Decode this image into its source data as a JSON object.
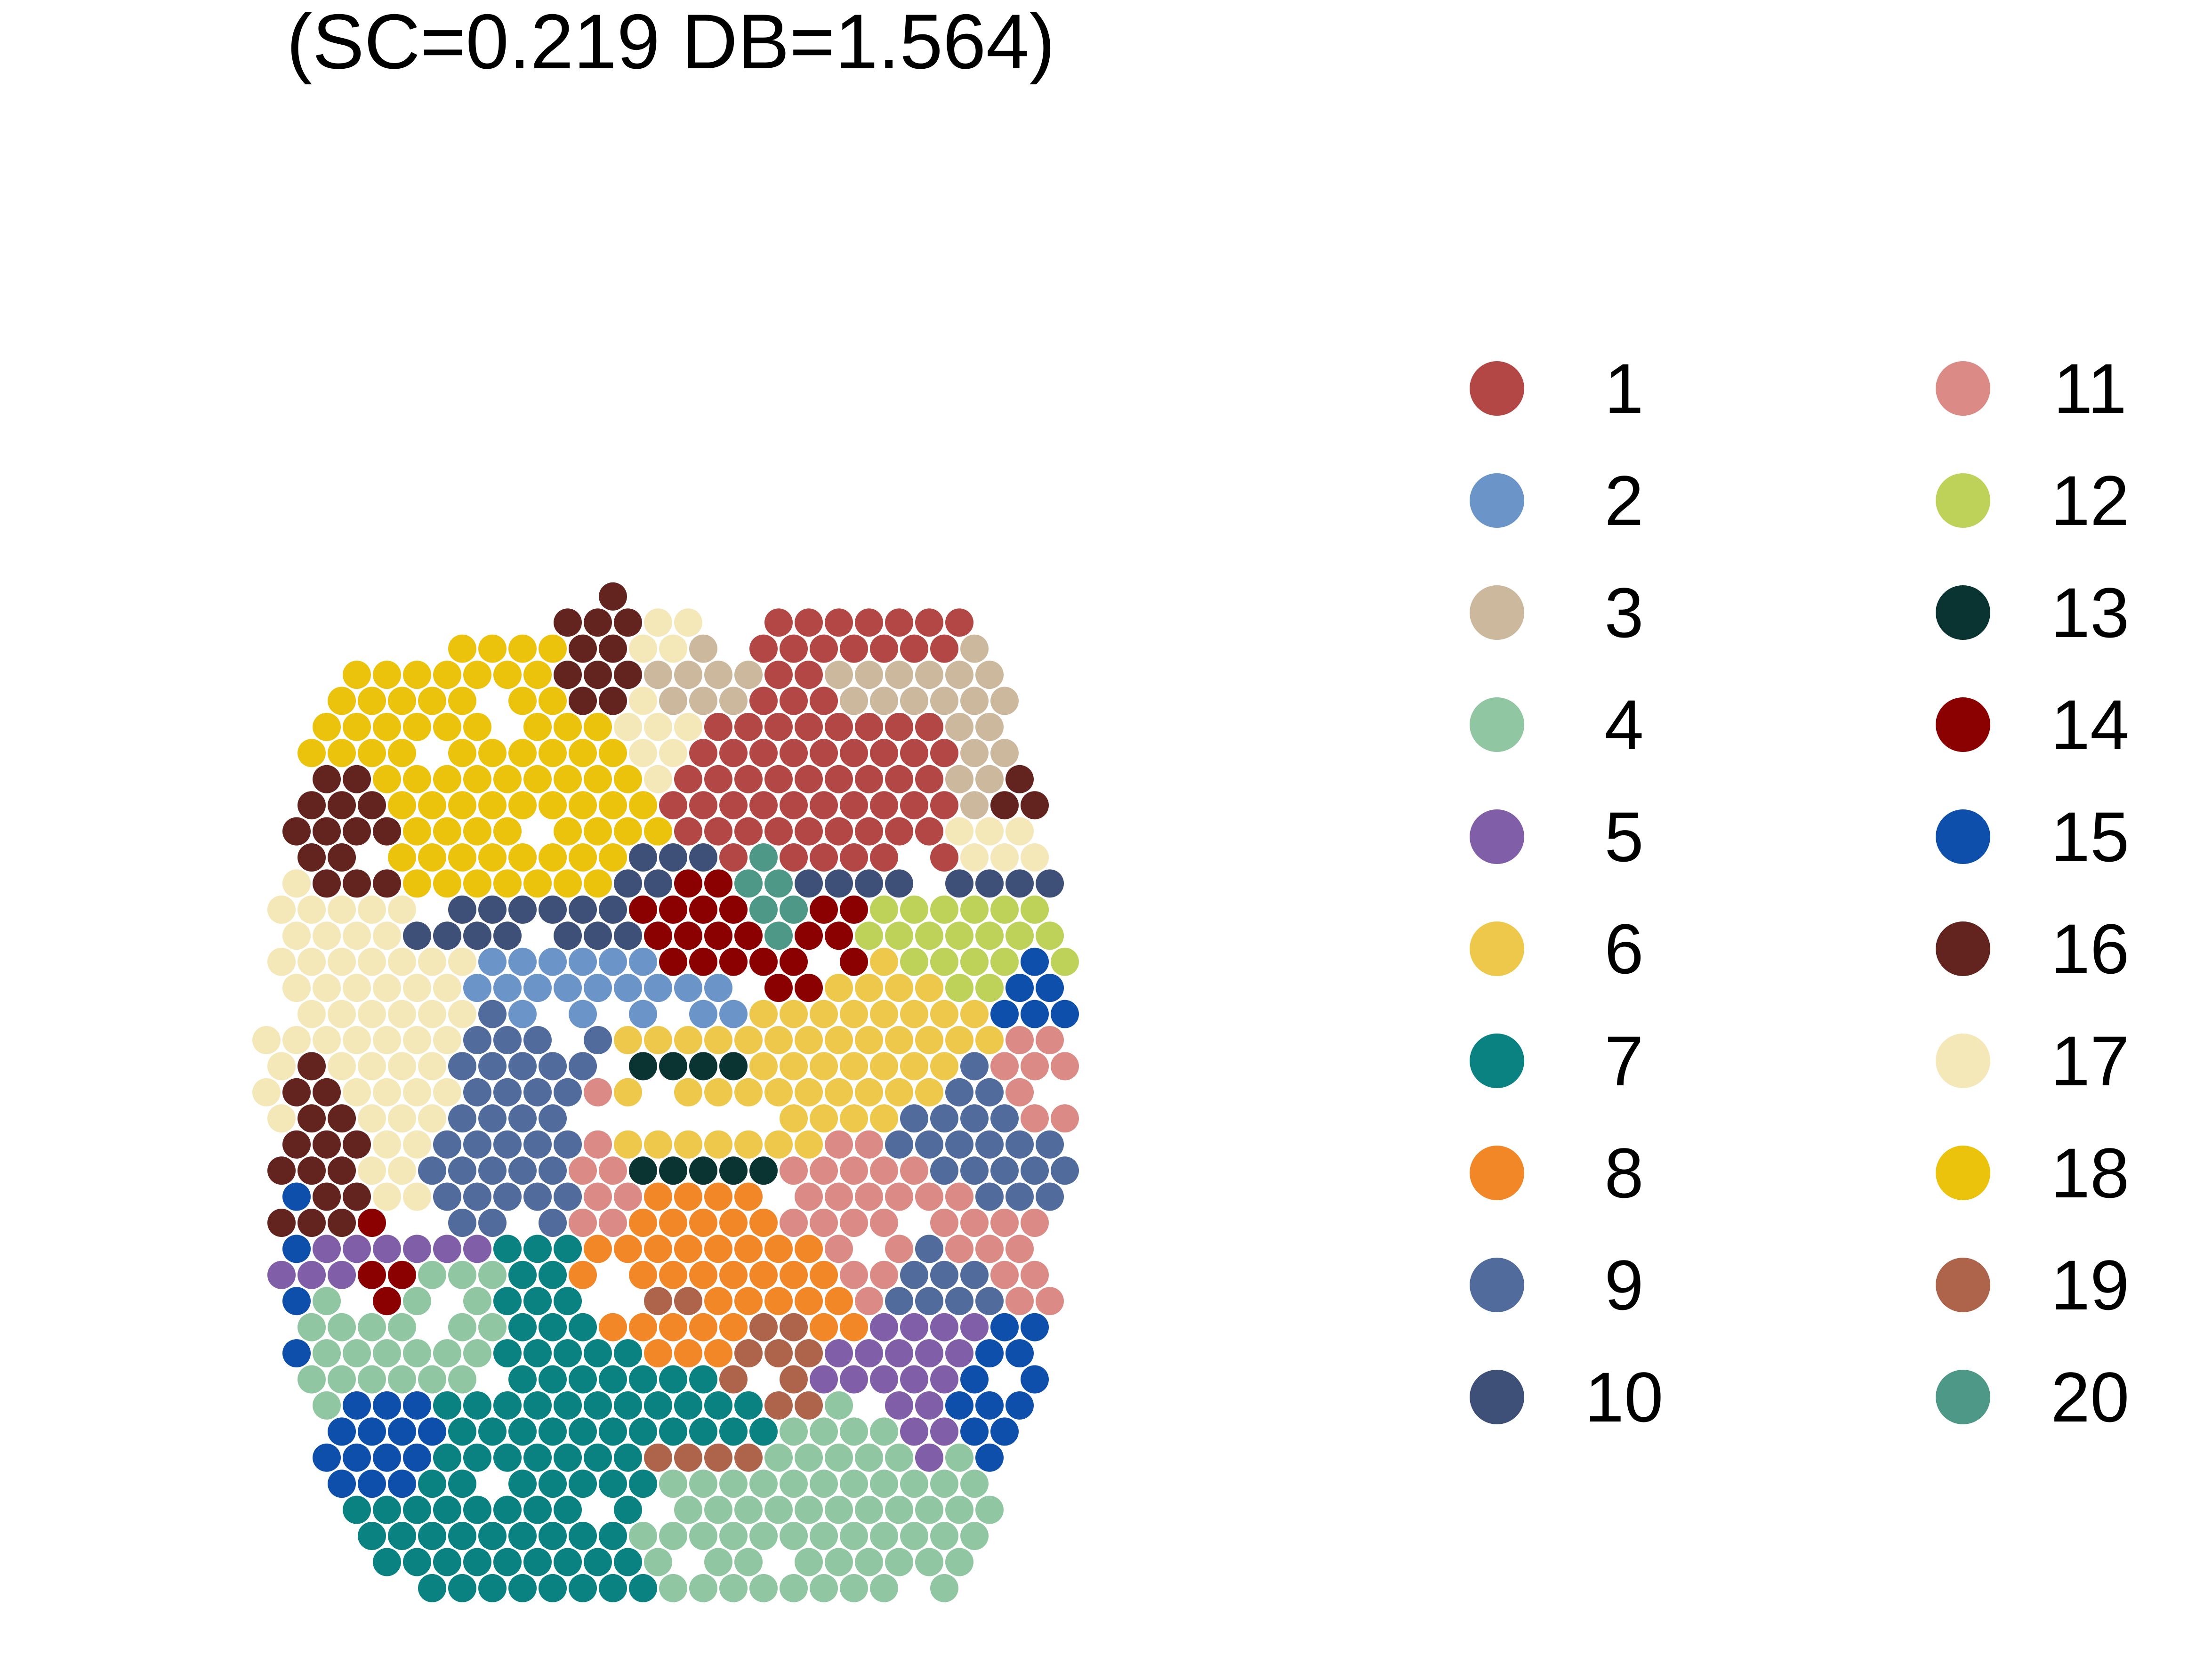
{
  "chart_data": {
    "type": "scatter",
    "title": "(SC=0.219  DB=1.564)",
    "xlabel": "",
    "ylabel": "",
    "axes_visible": false,
    "grid": false,
    "legend_placement": "right",
    "legend_columns": 2,
    "marker": "filled-circle",
    "clusters": [
      {
        "label": "1",
        "color": "#b34745",
        "blobs": [
          [
            0.28,
            0.12,
            0.14,
            0.06
          ],
          [
            0.36,
            0.19,
            0.16,
            0.06
          ],
          [
            0.22,
            0.19,
            0.06,
            0.05
          ]
        ]
      },
      {
        "label": "2",
        "color": "#6b94c9",
        "blobs": [
          [
            -0.12,
            -0.15,
            0.13,
            0.035
          ]
        ]
      },
      {
        "label": "3",
        "color": "#cbb89d",
        "blobs": [
          [
            0.02,
            0.28,
            0.07,
            0.02
          ],
          [
            0.38,
            0.26,
            0.08,
            0.03
          ],
          [
            0.52,
            0.18,
            0.05,
            0.06
          ]
        ]
      },
      {
        "label": "4",
        "color": "#90c7a2",
        "blobs": [
          [
            -0.38,
            -0.62,
            0.1,
            0.08
          ],
          [
            0.28,
            -0.82,
            0.16,
            0.07
          ]
        ]
      },
      {
        "label": "5",
        "color": "#805ea8",
        "blobs": [
          [
            -0.4,
            -0.52,
            0.1,
            0.02
          ],
          [
            0.43,
            -0.7,
            0.05,
            0.1
          ],
          [
            0.28,
            -0.68,
            0.1,
            0.02
          ]
        ]
      },
      {
        "label": "6",
        "color": "#eec84a",
        "blobs": [
          [
            0.05,
            -0.3,
            0.12,
            0.06
          ],
          [
            0.38,
            -0.22,
            0.09,
            0.08
          ],
          [
            -0.1,
            -0.36,
            0.05,
            0.06
          ]
        ]
      },
      {
        "label": "7",
        "color": "#0a8282",
        "blobs": [
          [
            -0.22,
            -0.74,
            0.12,
            0.09
          ],
          [
            -0.22,
            -0.56,
            0.05,
            0.06
          ],
          [
            0.08,
            -0.76,
            0.08,
            0.05
          ]
        ]
      },
      {
        "label": "8",
        "color": "#f28727",
        "blobs": [
          [
            0.02,
            -0.54,
            0.15,
            0.06
          ]
        ]
      },
      {
        "label": "9",
        "color": "#516b9d",
        "blobs": [
          [
            -0.22,
            -0.34,
            0.09,
            0.12
          ],
          [
            0.5,
            -0.36,
            0.09,
            0.08
          ],
          [
            0.44,
            -0.54,
            0.05,
            0.05
          ]
        ]
      },
      {
        "label": "10",
        "color": "#3e4f78",
        "blobs": [
          [
            -0.25,
            -0.06,
            0.16,
            0.02
          ],
          [
            0.38,
            0.0,
            0.18,
            0.02
          ],
          [
            -0.02,
            0.02,
            0.05,
            0.02
          ]
        ]
      },
      {
        "label": "11",
        "color": "#db8a85",
        "blobs": [
          [
            0.4,
            -0.46,
            0.12,
            0.06
          ],
          [
            -0.12,
            -0.4,
            0.05,
            0.1
          ],
          [
            0.6,
            -0.28,
            0.04,
            0.06
          ]
        ]
      },
      {
        "label": "12",
        "color": "#bed25a",
        "blobs": [
          [
            0.52,
            -0.07,
            0.12,
            0.05
          ]
        ]
      },
      {
        "label": "13",
        "color": "#0a3432",
        "blobs": [
          [
            0.02,
            -0.26,
            0.12,
            0.018
          ],
          [
            0.02,
            -0.4,
            0.08,
            0.018
          ]
        ]
      },
      {
        "label": "14",
        "color": "#8b0001",
        "blobs": [
          [
            0.06,
            -0.06,
            0.07,
            0.05
          ],
          [
            0.24,
            -0.08,
            0.05,
            0.05
          ],
          [
            -0.48,
            -0.56,
            0.03,
            0.05
          ]
        ]
      },
      {
        "label": "15",
        "color": "#0d4fab",
        "blobs": [
          [
            -0.62,
            -0.46,
            0.008,
            0.09
          ],
          [
            0.6,
            -0.12,
            0.04,
            0.04
          ],
          [
            0.52,
            -0.72,
            0.05,
            0.05
          ],
          [
            -0.46,
            -0.76,
            0.05,
            0.04
          ]
        ]
      },
      {
        "label": "16",
        "color": "#63241f",
        "blobs": [
          [
            -0.52,
            0.04,
            0.05,
            0.06
          ],
          [
            -0.58,
            -0.3,
            0.04,
            0.1
          ],
          [
            -0.1,
            0.28,
            0.04,
            0.04
          ],
          [
            0.62,
            0.14,
            0.05,
            0.05
          ]
        ]
      },
      {
        "label": "17",
        "color": "#f4e7b8",
        "blobs": [
          [
            -0.52,
            -0.18,
            0.1,
            0.12
          ],
          [
            -0.04,
            0.24,
            0.04,
            0.05
          ],
          [
            0.58,
            0.06,
            0.06,
            0.03
          ]
        ]
      },
      {
        "label": "18",
        "color": "#ecc30c",
        "blobs": [
          [
            -0.28,
            0.08,
            0.14,
            0.08
          ],
          [
            -0.2,
            0.2,
            0.07,
            0.05
          ]
        ]
      },
      {
        "label": "19",
        "color": "#ad644a",
        "blobs": [
          [
            0.0,
            -0.58,
            0.08,
            0.02
          ],
          [
            0.18,
            -0.7,
            0.05,
            0.06
          ],
          [
            0.08,
            -0.8,
            0.08,
            0.02
          ]
        ]
      },
      {
        "label": "20",
        "color": "#4e9887",
        "blobs": [
          [
            0.18,
            -0.03,
            0.06,
            0.045
          ]
        ]
      }
    ]
  }
}
